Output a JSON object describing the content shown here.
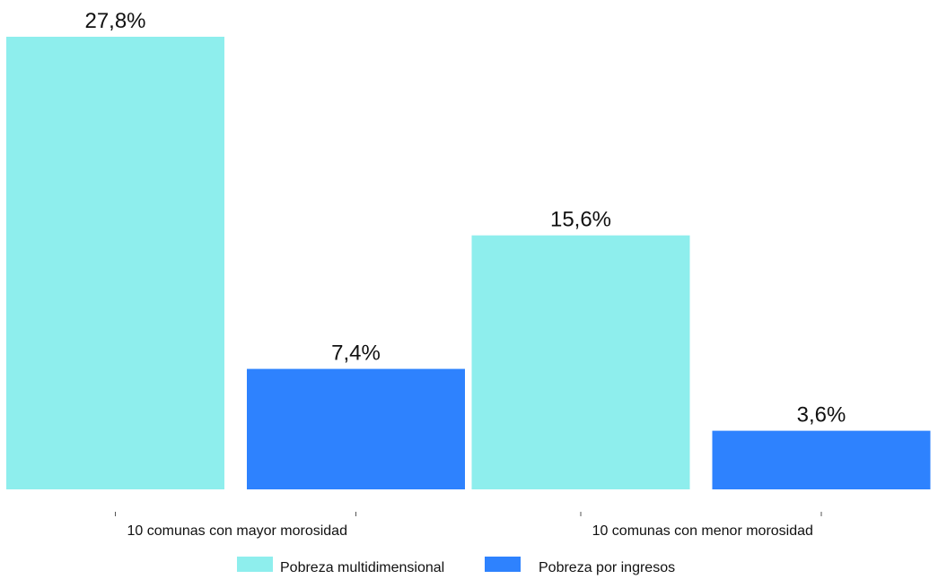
{
  "chart_data": {
    "type": "bar",
    "categories": [
      "10 comunas con mayor morosidad",
      "10 comunas con menor morosidad"
    ],
    "series": [
      {
        "name": "Pobreza multidimensional",
        "values": [
          27.8,
          15.6
        ],
        "labels": [
          "27,8%",
          "15,6%"
        ],
        "color": "#8eeeed"
      },
      {
        "name": "Pobreza por ingresos",
        "values": [
          7.4,
          3.6
        ],
        "labels": [
          "7,4%",
          "3,6%"
        ],
        "color": "#2e82fe"
      }
    ],
    "title": "",
    "xlabel": "",
    "ylabel": "",
    "ylim": [
      0,
      27.8
    ],
    "grid": false,
    "legend_position": "bottom"
  }
}
